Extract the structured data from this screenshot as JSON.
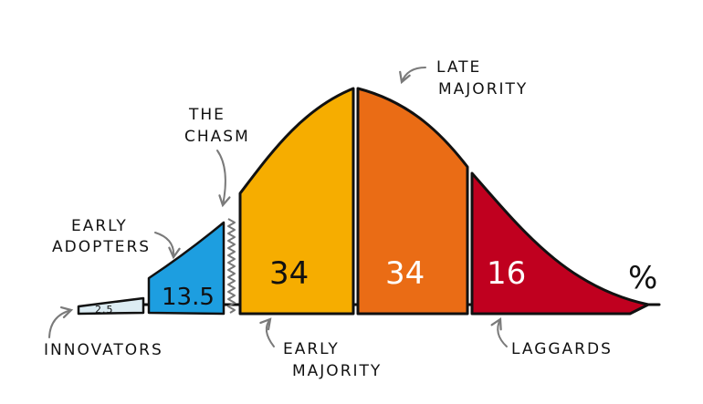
{
  "labels": {
    "innovators": "INNOVATORS",
    "early_adopters_1": "EARLY",
    "early_adopters_2": "ADOPTERS",
    "chasm_1": "THE",
    "chasm_2": "CHASM",
    "early_majority_1": "EARLY",
    "early_majority_2": "MAJORITY",
    "late_majority_1": "LATE",
    "late_majority_2": "MAJORITY",
    "laggards": "LAGGARDS",
    "percent": "%"
  },
  "values": {
    "innovators": "2.5",
    "early_adopters": "13.5",
    "early_majority": "34",
    "late_majority": "34",
    "laggards": "16"
  },
  "colors": {
    "innovators": "#dcecf3",
    "early_adopters": "#1d9ee0",
    "early_majority": "#f6ad00",
    "late_majority": "#ea6c15",
    "laggards": "#c0001f",
    "outline": "#111111",
    "arrow": "#7a7a7a"
  }
}
